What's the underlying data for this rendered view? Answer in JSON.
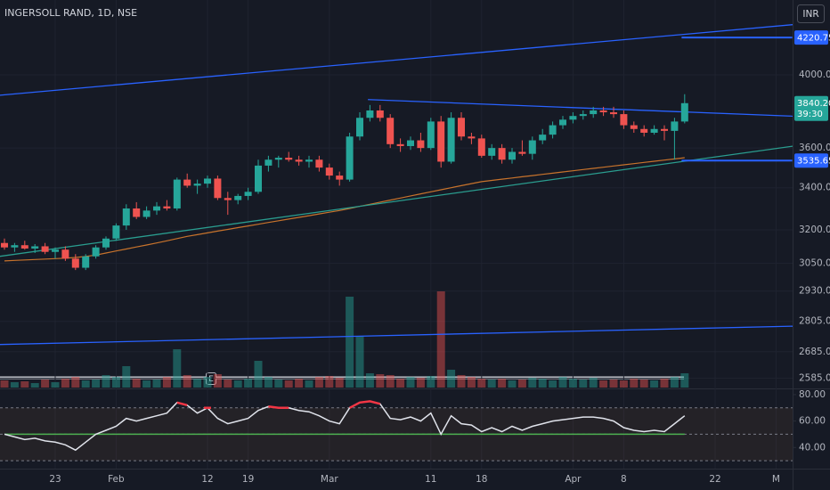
{
  "chart_data": {
    "type": "candlestick",
    "title": "INGERSOLL RAND, 1D, NSE",
    "currency": "INR",
    "earnings_marker": "E",
    "log_scale": true,
    "grid": true,
    "up_color": "#26a69a",
    "down_color": "#ef5350",
    "categories": [
      null,
      null,
      null,
      null,
      null,
      "23",
      null,
      null,
      null,
      null,
      null,
      "Feb",
      null,
      null,
      null,
      null,
      null,
      null,
      null,
      null,
      "12",
      null,
      null,
      null,
      "19",
      null,
      null,
      null,
      null,
      null,
      null,
      null,
      "Mar",
      null,
      null,
      null,
      null,
      null,
      null,
      null,
      null,
      null,
      "11",
      null,
      null,
      null,
      null,
      "18",
      null,
      null,
      null,
      null,
      null,
      null,
      null,
      null,
      "Apr",
      null,
      null,
      null,
      null,
      "8",
      null,
      null,
      null,
      null,
      null,
      null,
      null,
      null,
      "22",
      null,
      null,
      null,
      null,
      null,
      "M",
      null,
      null
    ],
    "open": [
      3140,
      3120,
      3130,
      3115,
      3125,
      3100,
      3110,
      3070,
      3030,
      3080,
      3120,
      3160,
      3220,
      3300,
      3260,
      3290,
      3310,
      3300,
      3440,
      3410,
      3420,
      3445,
      3350,
      3340,
      3360,
      3380,
      3510,
      3540,
      3550,
      3540,
      3530,
      3540,
      3500,
      3460,
      3440,
      3660,
      3760,
      3800,
      3760,
      3620,
      3610,
      3640,
      3600,
      3740,
      3530,
      3760,
      3660,
      3650,
      3560,
      3600,
      3540,
      3580,
      3570,
      3640,
      3670,
      3720,
      3750,
      3770,
      3780,
      3800,
      3790,
      3780,
      3720,
      3700,
      3680,
      3700,
      3690,
      3740,
      null,
      null,
      null,
      null,
      null,
      null,
      null,
      null,
      null,
      null,
      null
    ],
    "high": [
      3160,
      3140,
      3150,
      3135,
      3140,
      3120,
      3125,
      3090,
      3090,
      3130,
      3170,
      3230,
      3320,
      3330,
      3310,
      3330,
      3340,
      3450,
      3470,
      3440,
      3460,
      3460,
      3380,
      3370,
      3400,
      3540,
      3560,
      3560,
      3580,
      3560,
      3560,
      3560,
      3520,
      3480,
      3680,
      3790,
      3830,
      3830,
      3780,
      3650,
      3660,
      3680,
      3760,
      3770,
      3790,
      3790,
      3680,
      3670,
      3620,
      3620,
      3600,
      3640,
      3660,
      3700,
      3740,
      3770,
      3790,
      3800,
      3820,
      3820,
      3820,
      3800,
      3740,
      3720,
      3720,
      3720,
      3760,
      3890,
      null,
      null,
      null,
      null,
      null,
      null,
      null,
      null,
      null,
      null,
      null
    ],
    "low": [
      3110,
      3100,
      3110,
      3095,
      3090,
      3070,
      3060,
      3020,
      3020,
      3070,
      3110,
      3150,
      3200,
      3250,
      3250,
      3270,
      3290,
      3290,
      3400,
      3370,
      3400,
      3340,
      3270,
      3320,
      3340,
      3370,
      3480,
      3500,
      3530,
      3510,
      3500,
      3480,
      3440,
      3410,
      3430,
      3640,
      3740,
      3740,
      3600,
      3580,
      3590,
      3580,
      3590,
      3500,
      3520,
      3640,
      3620,
      3550,
      3540,
      3520,
      3520,
      3560,
      3540,
      3620,
      3650,
      3700,
      3730,
      3750,
      3760,
      3770,
      3760,
      3700,
      3680,
      3660,
      3670,
      3640,
      3540,
      3730,
      null,
      null,
      null,
      null,
      null,
      null,
      null,
      null,
      null,
      null,
      null
    ],
    "close": [
      3120,
      3130,
      3115,
      3125,
      3100,
      3110,
      3070,
      3030,
      3080,
      3120,
      3160,
      3220,
      3300,
      3260,
      3290,
      3310,
      3300,
      3440,
      3410,
      3420,
      3445,
      3350,
      3340,
      3360,
      3380,
      3510,
      3540,
      3550,
      3540,
      3530,
      3540,
      3500,
      3460,
      3440,
      3660,
      3760,
      3800,
      3760,
      3620,
      3610,
      3640,
      3600,
      3740,
      3530,
      3760,
      3660,
      3650,
      3560,
      3600,
      3540,
      3580,
      3570,
      3640,
      3670,
      3720,
      3750,
      3770,
      3780,
      3800,
      3790,
      3780,
      3720,
      3700,
      3680,
      3700,
      3690,
      3740,
      3840.2,
      null,
      null,
      null,
      null,
      null,
      null,
      null,
      null,
      null,
      null,
      null
    ],
    "ma": {
      "color": "#c8732c",
      "values": [
        3060,
        3062,
        3064,
        3066,
        3068,
        3070,
        3072,
        3075,
        3080,
        3086,
        3095,
        3104,
        3113,
        3122,
        3131,
        3140,
        3150,
        3160,
        3170,
        3178,
        3186,
        3194,
        3202,
        3210,
        3218,
        3226,
        3234,
        3242,
        3250,
        3258,
        3266,
        3274,
        3282,
        3290,
        3300,
        3310,
        3320,
        3330,
        3340,
        3350,
        3360,
        3370,
        3380,
        3390,
        3400,
        3410,
        3420,
        3430,
        3436,
        3442,
        3448,
        3454,
        3460,
        3466,
        3472,
        3478,
        3484,
        3490,
        3496,
        3502,
        3508,
        3514,
        3520,
        3526,
        3532,
        3538,
        3544,
        3550,
        null,
        null,
        null,
        null,
        null,
        null,
        null,
        null,
        null,
        null,
        null
      ]
    },
    "volume": [
      8,
      6,
      7,
      5,
      9,
      6,
      10,
      12,
      8,
      9,
      14,
      12,
      24,
      10,
      8,
      9,
      12,
      43,
      14,
      10,
      12,
      15,
      9,
      8,
      10,
      30,
      12,
      9,
      8,
      10,
      8,
      12,
      13,
      11,
      102,
      58,
      16,
      15,
      14,
      10,
      12,
      11,
      13,
      108,
      20,
      14,
      12,
      10,
      9,
      10,
      8,
      9,
      11,
      10,
      8,
      12,
      10,
      9,
      11,
      8,
      9,
      8,
      10,
      9,
      8,
      10,
      12,
      16,
      null,
      null,
      null,
      null,
      null,
      null,
      null,
      null,
      null,
      null,
      null
    ],
    "volume_lim": [
      0,
      110
    ],
    "ylim": [
      2550,
      4455
    ],
    "yticks": [
      {
        "value": 4000,
        "label": "4000.00"
      },
      {
        "value": 3600,
        "label": "3600.00"
      },
      {
        "value": 3400,
        "label": "3400.00"
      },
      {
        "value": 3200,
        "label": "3200.00"
      },
      {
        "value": 3050,
        "label": "3050.00"
      },
      {
        "value": 2930,
        "label": "2930.00"
      },
      {
        "value": 2805,
        "label": "2805.00"
      },
      {
        "value": 2685,
        "label": "2685.00"
      },
      {
        "value": 2585,
        "label": "2585.00"
      }
    ],
    "trendlines": [
      {
        "color": "#2962ff",
        "x": [
          -0.5,
          81.3
        ],
        "y": [
          3884,
          4320
        ]
      },
      {
        "color": "#2962ff",
        "x": [
          -0.5,
          81.3
        ],
        "y": [
          2713,
          2789
        ]
      },
      {
        "color": "#2962ff",
        "x": [
          35.8,
          81.3
        ],
        "y": [
          3860,
          3761
        ]
      },
      {
        "color": "#2a9d8f",
        "x": [
          -0.5,
          80.3
        ],
        "y": [
          3080,
          3629
        ]
      },
      {
        "color": "#2962ff",
        "x": [
          66.7,
          77.6
        ],
        "y": [
          4220.75,
          4220.75
        ]
      },
      {
        "color": "#2962ff",
        "x": [
          66.7,
          77.6
        ],
        "y": [
          3535.65,
          3535.65
        ]
      }
    ],
    "price_tags": [
      4220.75,
      3535.65
    ],
    "price_tag_color": "#2962ff",
    "last_price": {
      "value": 3840.2,
      "label": "3840.20"
    },
    "countdown": "39:30",
    "rsi": {
      "color": "#e0e3eb",
      "overbought_color": "#f23645",
      "values": [
        50,
        48,
        46,
        47,
        45,
        44,
        42,
        38,
        44,
        50,
        53,
        56,
        62,
        60,
        62,
        64,
        66,
        74,
        72,
        66,
        70,
        62,
        58,
        60,
        62,
        68,
        71,
        70,
        70,
        68,
        67,
        64,
        60,
        58,
        70,
        74,
        75,
        73,
        62,
        61,
        63,
        60,
        66,
        50,
        64,
        58,
        57,
        52,
        55,
        52,
        56,
        53,
        56,
        58,
        60,
        61,
        62,
        63,
        63,
        62,
        60,
        55,
        53,
        52,
        53,
        52,
        58,
        64,
        null,
        null,
        null,
        null,
        null,
        null,
        null,
        null,
        null,
        null,
        null
      ]
    },
    "rsi_ma": {
      "color": "#4caf50",
      "values": [
        50,
        50,
        50,
        50,
        50,
        50,
        50,
        50,
        50,
        50,
        50,
        50,
        50,
        50,
        50,
        50,
        50,
        50,
        50,
        50,
        50,
        50,
        50,
        50,
        50,
        50,
        50,
        50,
        50,
        50,
        50,
        50,
        50,
        50,
        50,
        50,
        50,
        50,
        50,
        50,
        50,
        50,
        50,
        50,
        50,
        50,
        50,
        50,
        50,
        50,
        50,
        50,
        50,
        50,
        50,
        50,
        50,
        50,
        50,
        50,
        50,
        50,
        50,
        50,
        50,
        50,
        50,
        50,
        null,
        null,
        null,
        null,
        null,
        null,
        null,
        null,
        null,
        null,
        null
      ]
    },
    "rsi_ylim": [
      24,
      84
    ],
    "rsi_yticks": [
      {
        "value": 80,
        "label": "80.00"
      },
      {
        "value": 60,
        "label": "60.00"
      },
      {
        "value": 40,
        "label": "40.00"
      }
    ],
    "rsi_bands": [
      30,
      50,
      70
    ]
  }
}
